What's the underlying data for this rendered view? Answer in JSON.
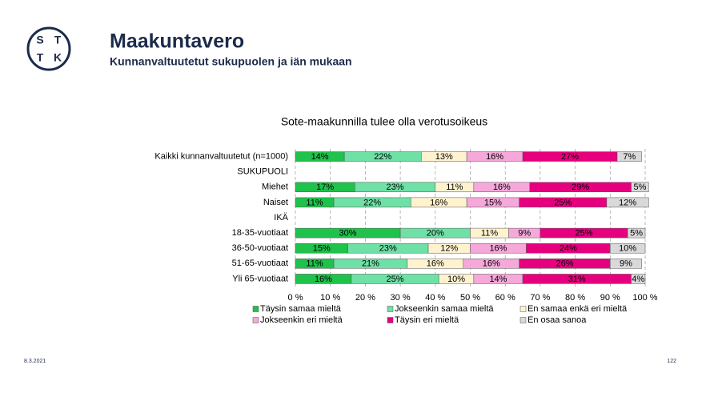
{
  "slide": {
    "logo": [
      "S",
      "T",
      "T",
      "K"
    ],
    "title": "Maakuntavero",
    "subtitle": "Kunnanvaltuutetut sukupuolen ja iän mukaan",
    "date": "8.3.2021",
    "page": 122
  },
  "chart_data": {
    "type": "stacked-barh",
    "title": "Sote-maakunnilla  tulee olla verotusoikeus",
    "categories": [
      "Kaikki kunnanvaltuutetut (n=1000)",
      "SUKUPUOLI",
      "Miehet",
      "Naiset",
      "IKÄ",
      "18-35-vuotiaat",
      "36-50-vuotiaat",
      "51-65-vuotiaat",
      "Yli 65-vuotiaat"
    ],
    "series": [
      {
        "name": "Täysin samaa mieltä",
        "color": "#1fc24b",
        "values": [
          14,
          null,
          17,
          11,
          null,
          30,
          15,
          11,
          16
        ],
        "value_labels": [
          "14%",
          null,
          "17%",
          "11%",
          null,
          "30%",
          "15%",
          "11%",
          "16%"
        ]
      },
      {
        "name": "Jokseenkin samaa mieltä",
        "color": "#6fe0a6",
        "values": [
          22,
          null,
          23,
          22,
          null,
          20,
          23,
          21,
          25
        ],
        "value_labels": [
          "22%",
          null,
          "23%",
          "22%",
          null,
          "20%",
          "23%",
          "21%",
          "25%"
        ]
      },
      {
        "name": "En samaa enkä eri mieltä",
        "color": "#fff2cf",
        "values": [
          13,
          null,
          11,
          16,
          null,
          11,
          12,
          16,
          10
        ],
        "value_labels": [
          "13%",
          null,
          "11%",
          "16%",
          null,
          "11%",
          "12%",
          "16%",
          "10%"
        ]
      },
      {
        "name": "Jokseenkin eri mieltä",
        "color": "#f6a8da",
        "values": [
          16,
          null,
          16,
          15,
          null,
          9,
          16,
          16,
          14
        ],
        "value_labels": [
          "16%",
          null,
          "16%",
          "15%",
          null,
          "9%",
          "16%",
          "16%",
          "14%"
        ]
      },
      {
        "name": "Täysin eri mieltä",
        "color": "#e6007e",
        "values": [
          27,
          null,
          29,
          25,
          null,
          25,
          24,
          26,
          31
        ],
        "value_labels": [
          "27%",
          null,
          "29%",
          "25%",
          null,
          "25%",
          "24%",
          "26%",
          "31%"
        ]
      },
      {
        "name": "En osaa sanoa",
        "color": "#d9d9d9",
        "values": [
          7,
          null,
          5,
          12,
          null,
          5,
          10,
          9,
          4
        ],
        "value_labels": [
          "7%",
          null,
          "5%",
          "12%",
          null,
          "5%",
          "10%",
          "9%",
          "4%"
        ]
      }
    ],
    "xlim": [
      0,
      100
    ],
    "xticks": [
      {
        "value": 0,
        "label": "0 %"
      },
      {
        "value": 10,
        "label": "10 %"
      },
      {
        "value": 20,
        "label": "20 %"
      },
      {
        "value": 30,
        "label": "30 %"
      },
      {
        "value": 40,
        "label": "40 %"
      },
      {
        "value": 50,
        "label": "50 %"
      },
      {
        "value": 60,
        "label": "60 %"
      },
      {
        "value": 70,
        "label": "70 %"
      },
      {
        "value": 80,
        "label": "80 %"
      },
      {
        "value": 90,
        "label": "90 %"
      },
      {
        "value": 100,
        "label": "100 %"
      }
    ],
    "grid": true,
    "legend": "bottom"
  }
}
